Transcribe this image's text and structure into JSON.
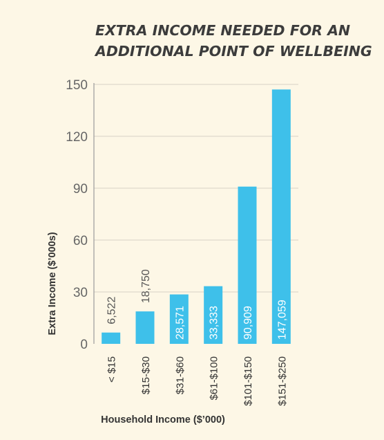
{
  "chart_data": {
    "type": "bar",
    "title_lines": [
      "EXTRA INCOME NEEDED FOR AN",
      "ADDITIONAL POINT OF WELLBEING"
    ],
    "xlabel": "Household Income ($’000)",
    "ylabel": "Extra Income ($’000s)",
    "categories": [
      "< $15",
      "$15-$30",
      "$31-$60",
      "$61-$100",
      "$101-$150",
      "$151-$250"
    ],
    "values": [
      6.522,
      18.75,
      28.571,
      33.333,
      90.909,
      147.059
    ],
    "data_labels": [
      "6,522",
      "18,750",
      "28,571",
      "33,333",
      "90,909",
      "147,059"
    ],
    "ylim": [
      0,
      150
    ],
    "yticks": [
      0,
      30,
      60,
      90,
      120,
      150
    ],
    "grid": true,
    "colors": {
      "bar": "#3ec0ea",
      "background": "#fdf7e6"
    }
  }
}
